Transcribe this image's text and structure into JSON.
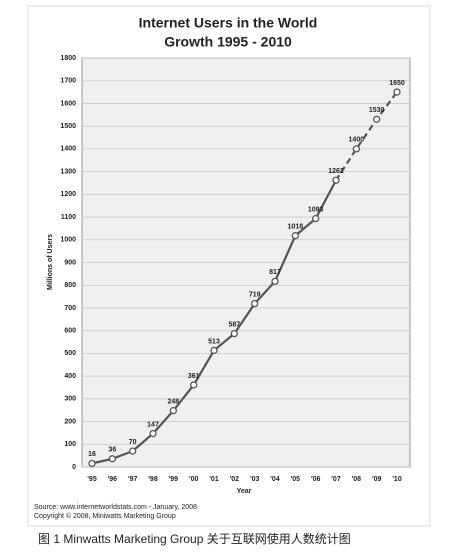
{
  "chart_data": {
    "type": "line",
    "title": "Internet Users in the World",
    "subtitle": "Growth 1995 - 2010",
    "x_label": "Year",
    "y_label": "Millions of Users",
    "categories": [
      "'95",
      "'96",
      "'97",
      "'98",
      "'99",
      "'00",
      "'01",
      "'02",
      "'03",
      "'04",
      "'05",
      "'06",
      "'07",
      "'08",
      "'09",
      "'10"
    ],
    "series": [
      {
        "name": "Internet Users",
        "color": "#555555",
        "values": [
          16,
          36,
          70,
          147,
          248,
          361,
          513,
          587,
          719,
          817,
          1018,
          1093,
          1262,
          1400,
          1530,
          1650
        ]
      }
    ],
    "dashed_after_index": 12,
    "ylim": [
      0,
      1800
    ],
    "yticks": [
      0,
      100,
      200,
      300,
      400,
      500,
      600,
      700,
      800,
      900,
      1000,
      1100,
      1200,
      1300,
      1400,
      1500,
      1600,
      1700,
      1800
    ],
    "grid": true,
    "source": [
      "Source: www.internetworldstats.com - January, 2008",
      "Copyright © 2008, Miniwatts Marketing Group"
    ],
    "caption": "图 1   Minwatts Marketing Group 关于互联网使用人数统计图"
  }
}
